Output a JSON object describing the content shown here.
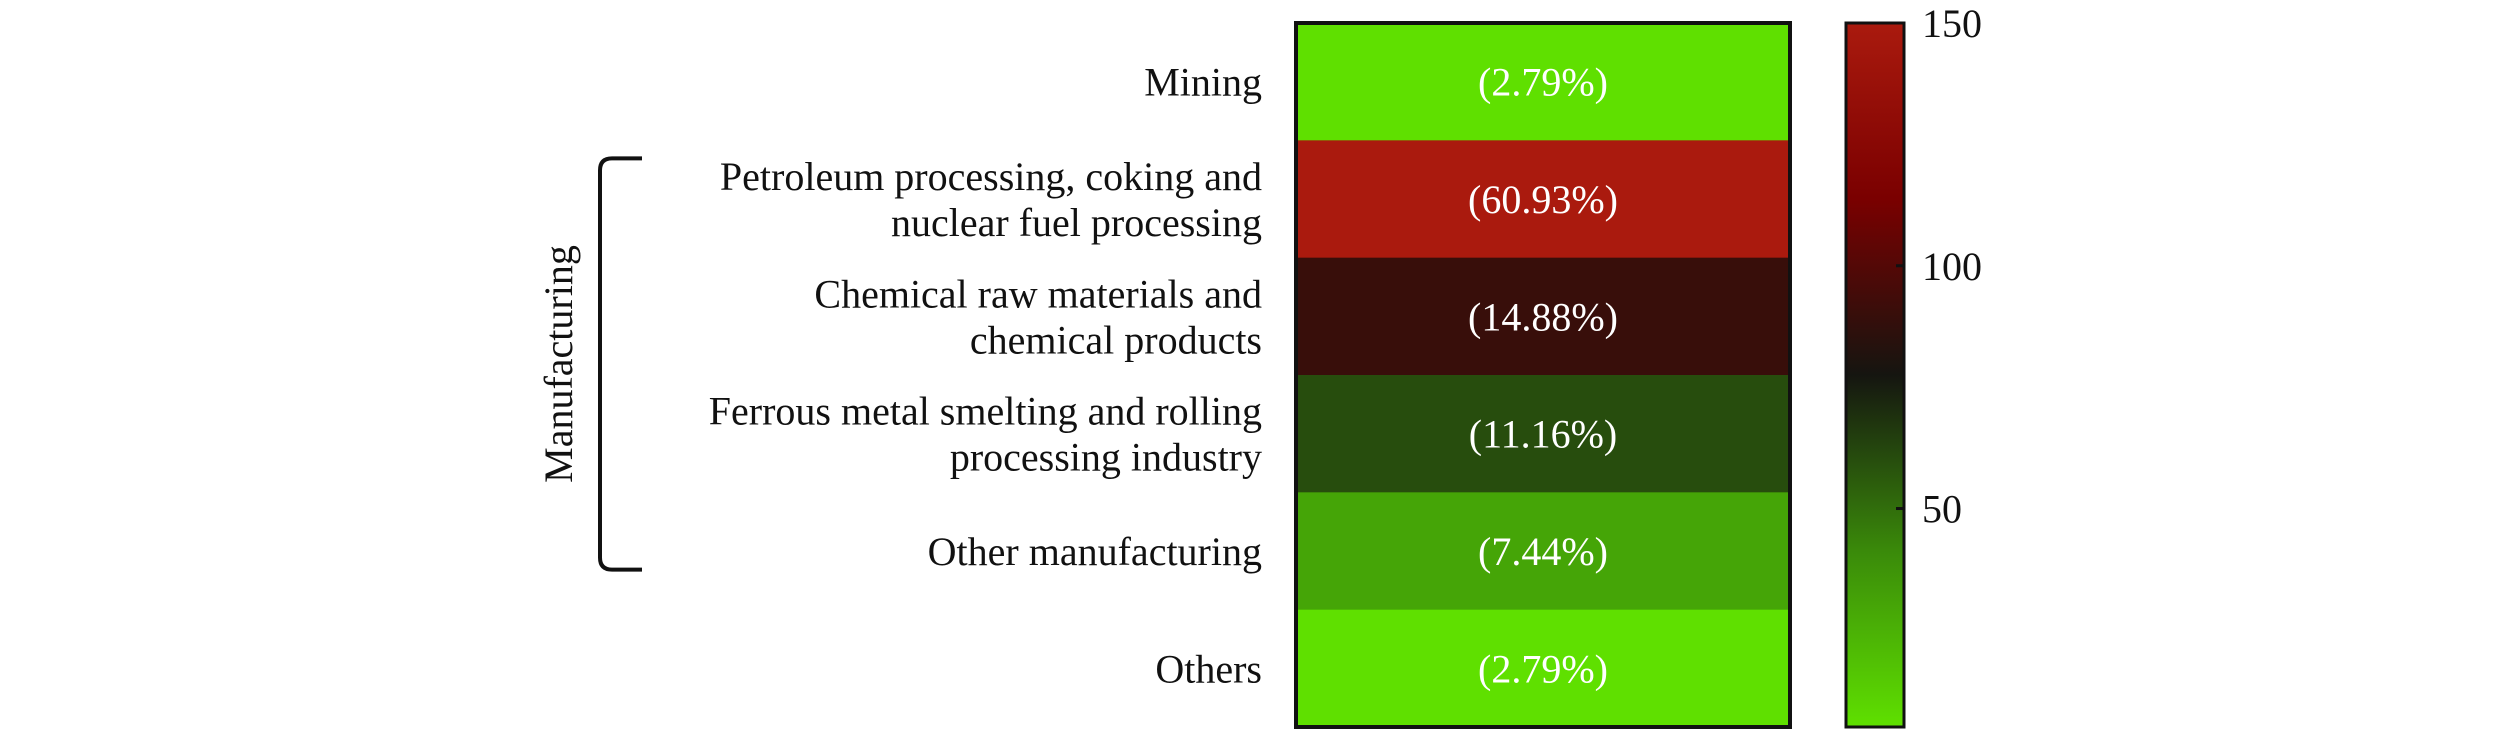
{
  "chart_data": {
    "type": "heatmap",
    "title": "",
    "rows": [
      {
        "label": [
          "Mining"
        ],
        "value": 5,
        "annotation": "(2.79%)"
      },
      {
        "label": [
          "Petroleum processing, coking and",
          "nuclear fuel processing"
        ],
        "value": 150,
        "annotation": "(60.93%)"
      },
      {
        "label": [
          "Chemical raw materials and",
          "chemical products"
        ],
        "value": 90,
        "annotation": "(14.88%)"
      },
      {
        "label": [
          "Ferrous metal smelting and rolling",
          "processing industry"
        ],
        "value": 60,
        "annotation": "(11.16%)"
      },
      {
        "label": [
          "Other manufacturing"
        ],
        "value": 30,
        "annotation": "(7.44%)"
      },
      {
        "label": [
          "Others"
        ],
        "value": 5,
        "annotation": "(2.79%)"
      }
    ],
    "group": {
      "label": "Manufacturing",
      "from_row": 1,
      "to_row": 4
    },
    "colorbar": {
      "range": [
        5,
        150
      ],
      "ticks": [
        {
          "value": 50,
          "label": "50"
        },
        {
          "value": 100,
          "label": "100"
        },
        {
          "value": 150,
          "label": "150"
        }
      ],
      "colors": [
        "#5fe000",
        "#3a8a0a",
        "#151510",
        "#7a0000",
        "#aa1a0e"
      ]
    }
  }
}
